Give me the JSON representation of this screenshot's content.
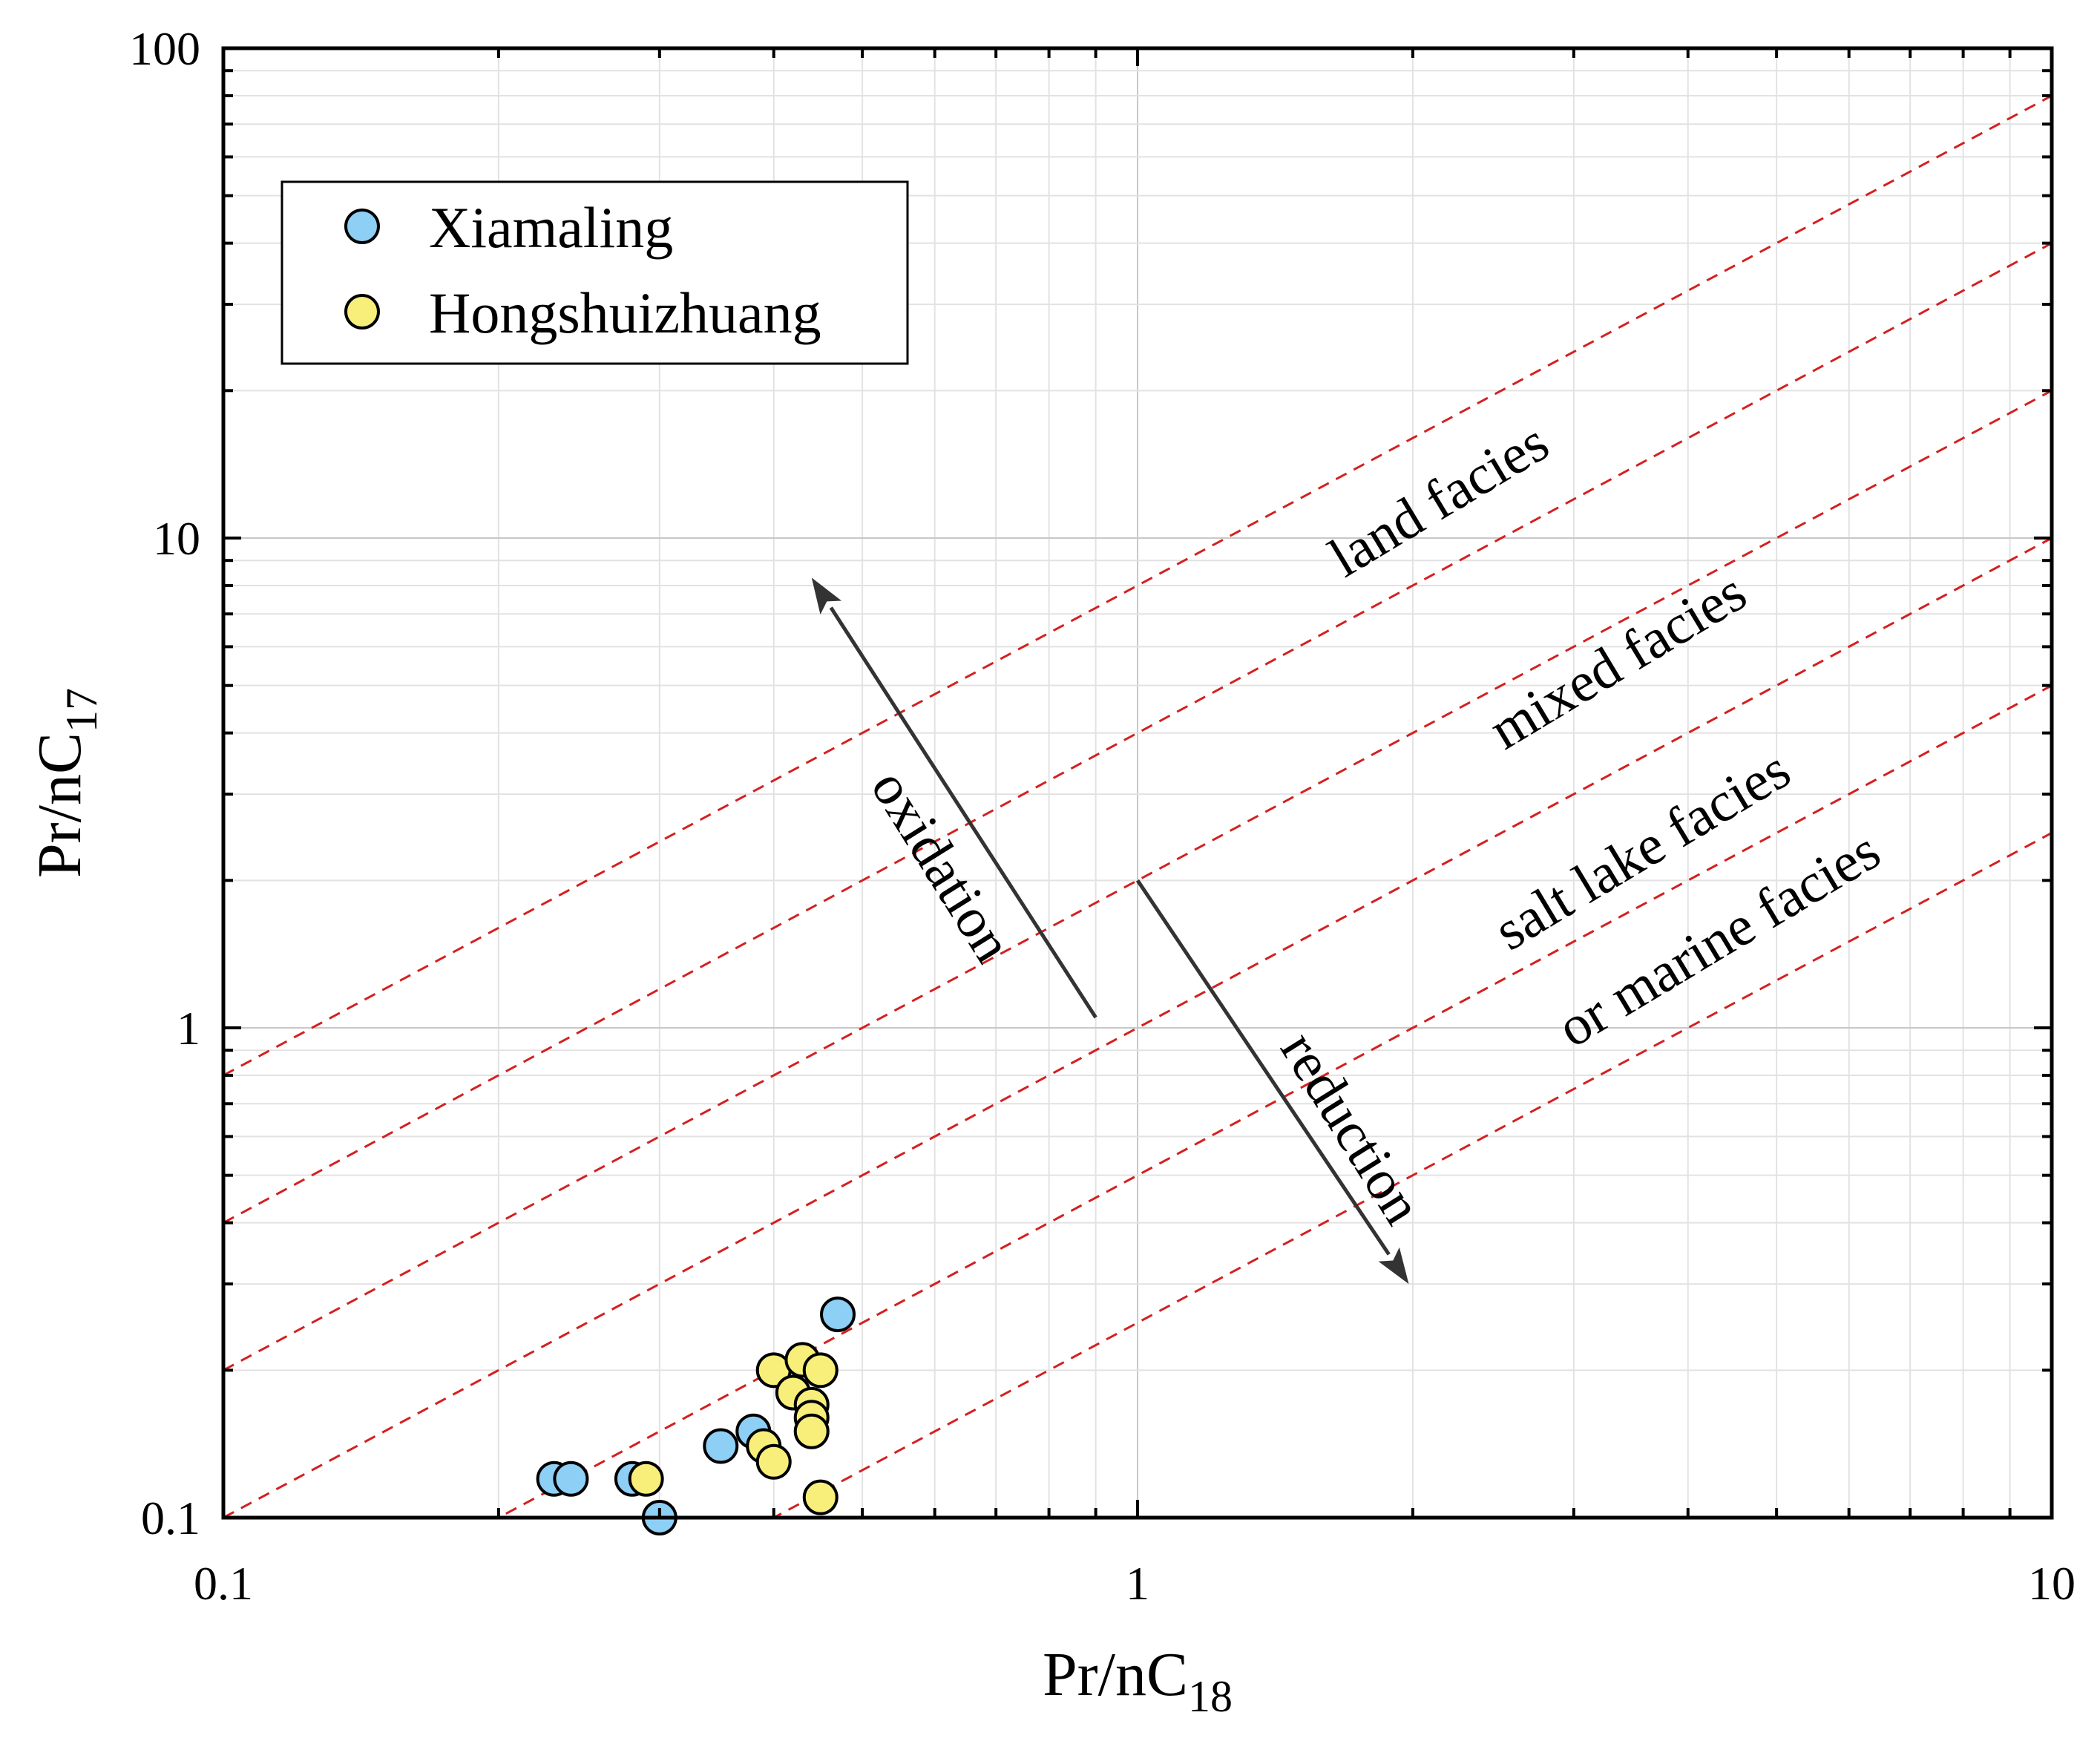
{
  "chart_data": {
    "type": "scatter",
    "x_scale": "log",
    "y_scale": "log",
    "xlim": [
      0.1,
      10
    ],
    "ylim": [
      0.1,
      100
    ],
    "xlabel": "Pr/nC",
    "xlabel_sub": "18",
    "ylabel": "Pr/nC",
    "ylabel_sub": "17",
    "x_ticks": [
      "0.1",
      "1",
      "10"
    ],
    "y_ticks": [
      "0.1",
      "1",
      "10",
      "100"
    ],
    "grid": true,
    "legend_position": "top-left",
    "series": [
      {
        "name": "Xiamaling",
        "color": "#8ecff5",
        "points": [
          [
            0.23,
            0.12
          ],
          [
            0.24,
            0.12
          ],
          [
            0.28,
            0.12
          ],
          [
            0.3,
            0.1
          ],
          [
            0.35,
            0.14
          ],
          [
            0.38,
            0.15
          ],
          [
            0.47,
            0.26
          ]
        ]
      },
      {
        "name": "Hongshuizhuang",
        "color": "#f7ef7a",
        "points": [
          [
            0.29,
            0.12
          ],
          [
            0.39,
            0.14
          ],
          [
            0.4,
            0.13
          ],
          [
            0.4,
            0.2
          ],
          [
            0.42,
            0.18
          ],
          [
            0.43,
            0.21
          ],
          [
            0.44,
            0.17
          ],
          [
            0.44,
            0.16
          ],
          [
            0.44,
            0.15
          ],
          [
            0.45,
            0.2
          ],
          [
            0.45,
            0.11
          ]
        ]
      }
    ],
    "boundary_lines": {
      "style": "dashed",
      "color": "#d42020",
      "ratios": [
        8,
        4,
        2,
        1,
        0.5,
        0.25
      ]
    },
    "region_labels": [
      "land facies",
      "mixed facies",
      "salt lake facies",
      "or marine facies"
    ],
    "arrows": [
      {
        "label": "oxidation",
        "from": [
          0.9,
          1.05
        ],
        "to": [
          0.44,
          8.3
        ]
      },
      {
        "label": "reduction",
        "from": [
          1.0,
          2.0
        ],
        "to": [
          1.98,
          0.3
        ]
      }
    ]
  }
}
